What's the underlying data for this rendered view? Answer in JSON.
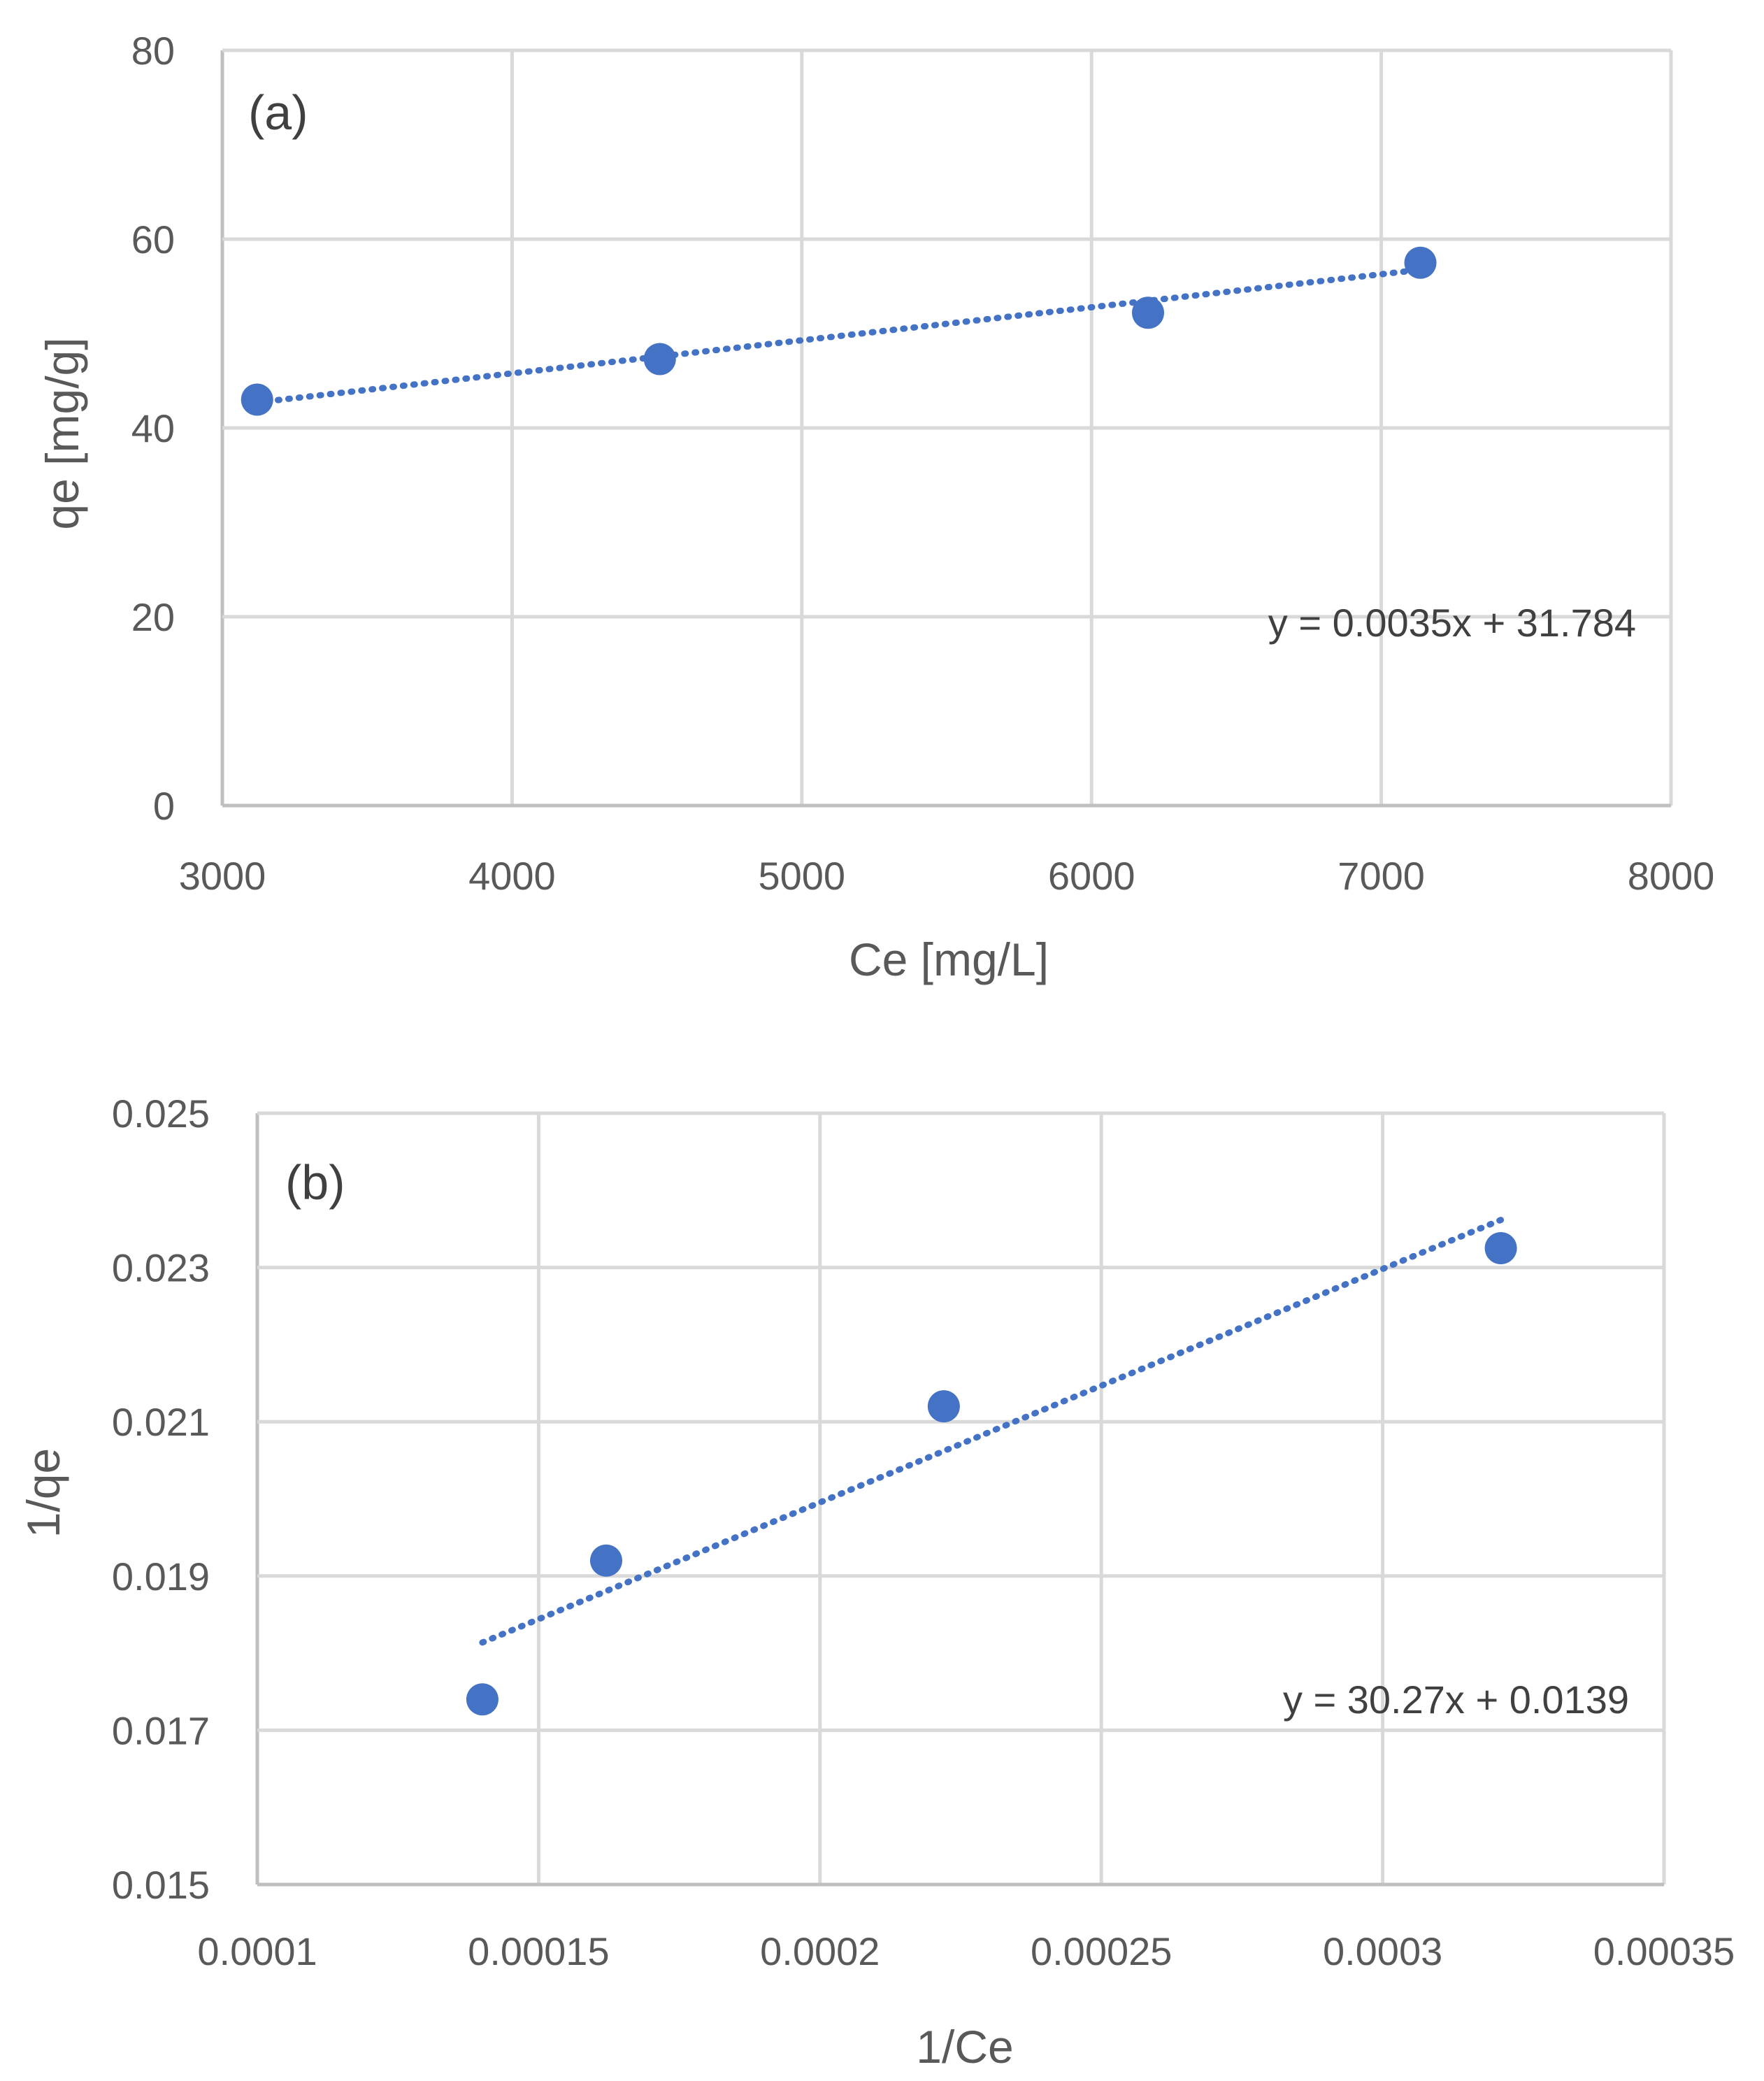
{
  "chart_data": [
    {
      "type": "scatter",
      "panel_label": "(a)",
      "xlabel": "Ce [mg/L]",
      "ylabel": "qe [mg/g]",
      "xlim": [
        3000,
        8000
      ],
      "ylim": [
        0,
        80
      ],
      "x_ticks": [
        "3000",
        "4000",
        "5000",
        "6000",
        "7000",
        "8000"
      ],
      "y_ticks": [
        "0",
        "20",
        "40",
        "60",
        "80"
      ],
      "grid": true,
      "series": [
        {
          "name": "data",
          "x": [
            3120,
            4510,
            6195,
            7135
          ],
          "y": [
            43.0,
            47.3,
            52.2,
            57.5
          ]
        }
      ],
      "trendline": {
        "type": "linear",
        "slope": 0.0035,
        "intercept": 31.784,
        "x_range": [
          3120,
          7135
        ]
      },
      "equation_label": "y = 0.0035x + 31.784",
      "color": "#4472c4"
    },
    {
      "type": "scatter",
      "panel_label": "(b)",
      "xlabel": "1/Ce",
      "ylabel": "1/qe",
      "xlim": [
        0.0001,
        0.00035
      ],
      "ylim": [
        0.015,
        0.025
      ],
      "x_ticks": [
        "0.0001",
        "0.00015",
        "0.0002",
        "0.00025",
        "0.0003",
        "0.00035"
      ],
      "y_ticks": [
        "0.015",
        "0.017",
        "0.019",
        "0.021",
        "0.023",
        "0.025"
      ],
      "grid": true,
      "series": [
        {
          "name": "data",
          "x": [
            0.00014,
            0.000162,
            0.000222,
            0.000321
          ],
          "y": [
            0.0174,
            0.0192,
            0.0212,
            0.02325
          ]
        }
      ],
      "trendline": {
        "type": "linear",
        "slope": 30.27,
        "intercept": 0.0139,
        "x_range": [
          0.00014,
          0.000321
        ]
      },
      "equation_label": "y = 30.27x + 0.0139",
      "color": "#4472c4"
    }
  ]
}
